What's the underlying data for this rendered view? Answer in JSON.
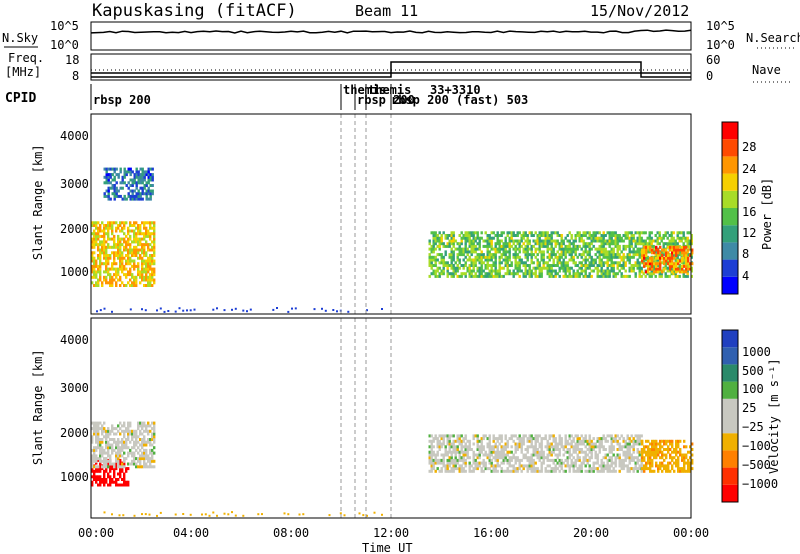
{
  "header": {
    "station": "Kapuskasing (fitACF)",
    "beam": "Beam 11",
    "date": "15/Nov/2012"
  },
  "noise_panel": {
    "label": "N.Sky",
    "right_label": "N.Search",
    "ticks_left": [
      "10^5",
      "10^0"
    ],
    "ticks_right": [
      "10^5",
      "10^0"
    ]
  },
  "freq_panel": {
    "label_top": "Freq.",
    "label_unit": "[MHz]",
    "ticks_left": [
      "18",
      "8"
    ],
    "ticks_right": [
      "60",
      "0"
    ],
    "right_label": "Nave"
  },
  "cpid_panel": {
    "label": "CPID",
    "entries": [
      {
        "text": "rbsp 200",
        "time": 0.3
      },
      {
        "text": "themis",
        "time": 10.0
      },
      {
        "text": "rbsp 200",
        "time": 10.6
      },
      {
        "text": "themis",
        "time": 10.6
      },
      {
        "text": "rbsp 200 (fast) 503",
        "time": 11.9
      },
      {
        "text": "33+3310",
        "time": 12.6
      }
    ]
  },
  "power_panel": {
    "ylabel": "Slant Range [km]",
    "yticks": [
      "4000",
      "3000",
      "2000",
      "1000"
    ],
    "colorbar_label": "Power [dB]",
    "colorbar_ticks": [
      "28",
      "24",
      "20",
      "16",
      "12",
      "8",
      "4"
    ],
    "colorbar_colors": [
      "#0000ff",
      "#1c3ed4",
      "#3e8aa6",
      "#33a07a",
      "#52c048",
      "#a8dc28",
      "#f6d000",
      "#ff9600",
      "#ff4a00",
      "#ff0000"
    ]
  },
  "velocity_panel": {
    "ylabel": "Slant Range [km]",
    "yticks": [
      "4000",
      "3000",
      "2000",
      "1000"
    ],
    "colorbar_label": "Velocity [m s⁻¹]",
    "colorbar_ticks": [
      "1000",
      "500",
      "100",
      "25",
      "−25",
      "−100",
      "−500",
      "−1000"
    ],
    "colorbar_colors": [
      "#2040c0",
      "#3060b0",
      "#2a8a6a",
      "#50b040",
      "#c8c8c0",
      "#c8c8c0",
      "#f0b000",
      "#ff8000",
      "#ff3000",
      "#ff0000"
    ]
  },
  "xaxis": {
    "label": "Time UT",
    "ticks": [
      "00:00",
      "04:00",
      "08:00",
      "12:00",
      "16:00",
      "20:00",
      "00:00"
    ]
  },
  "chart_data": {
    "type": "heatmap",
    "title": "Kapuskasing (fitACF) Beam 11 15/Nov/2012",
    "xlabel": "Time UT",
    "ylabel": "Slant Range [km]",
    "xlim_hours": [
      0,
      24
    ],
    "ylim_km": [
      200,
      4600
    ],
    "mode_change_times_hours": [
      10.0,
      10.4,
      10.9,
      11.9
    ],
    "nave_high_window_hours": [
      12.0,
      22.0
    ],
    "power_echo_regions": [
      {
        "t0": 0.0,
        "t1": 2.5,
        "r0": 800,
        "r1": 2200,
        "power_db": 20
      },
      {
        "t0": 0.5,
        "t1": 2.5,
        "r0": 2700,
        "r1": 3400,
        "power_db": 6
      },
      {
        "t0": 13.5,
        "t1": 24.0,
        "r0": 1000,
        "r1": 2000,
        "power_db": 14
      },
      {
        "t0": 22.0,
        "t1": 24.0,
        "r0": 1100,
        "r1": 1700,
        "power_db": 24
      }
    ],
    "velocity_echo_regions": [
      {
        "t0": 0.0,
        "t1": 1.5,
        "r0": 900,
        "r1": 1500,
        "velocity": -800
      },
      {
        "t0": 0.0,
        "t1": 2.5,
        "r0": 1300,
        "r1": 2300,
        "velocity": 0
      },
      {
        "t0": 13.5,
        "t1": 22.0,
        "r0": 1200,
        "r1": 2000,
        "velocity": 0
      },
      {
        "t0": 22.0,
        "t1": 24.0,
        "r0": 1200,
        "r1": 1900,
        "velocity": -80
      }
    ]
  }
}
